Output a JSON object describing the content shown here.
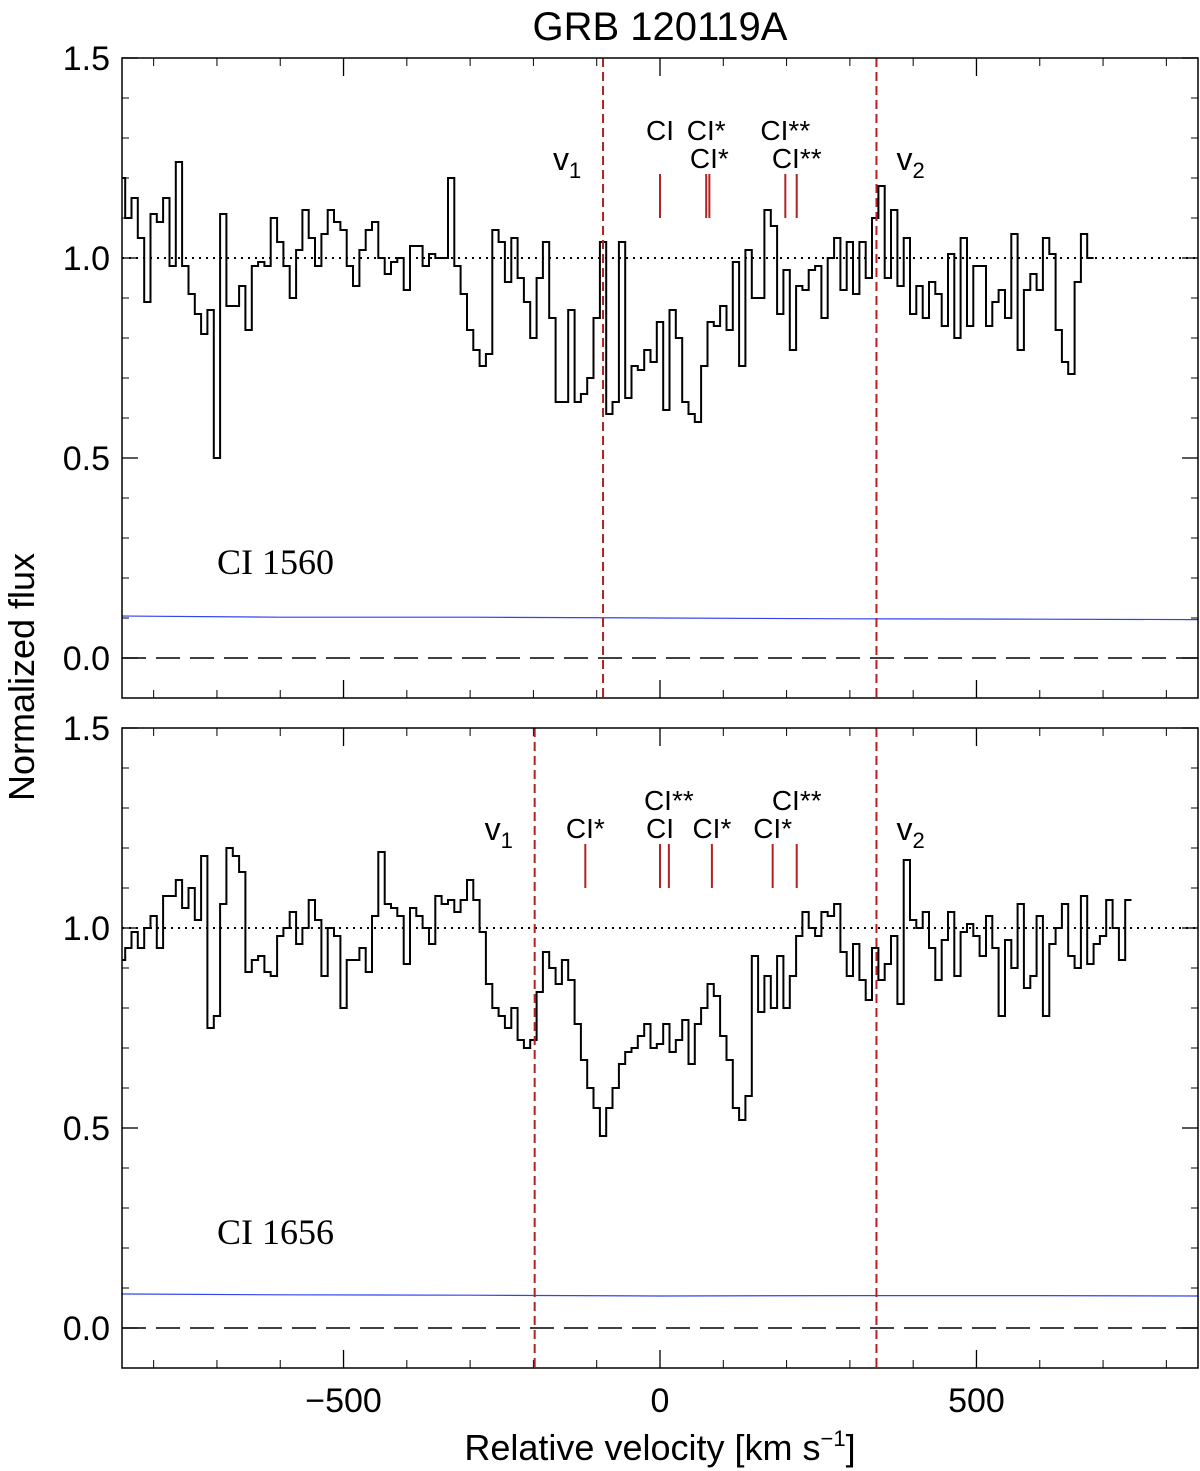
{
  "title": "GRB 120119A",
  "ylabel": "Normalized flux",
  "xlabel": "Relative velocity  [km s",
  "xlabel_sup": "−1",
  "xlabel_end": "]",
  "colors": {
    "spectrum": "#000000",
    "error": "#3344ee",
    "limits": "#b22222",
    "ticks": "#b22222",
    "continuum": "#000000"
  },
  "chart_data": [
    {
      "type": "line",
      "panel_label": "CI 1560",
      "xlim": [
        -850,
        850
      ],
      "ylim": [
        -0.1,
        1.5
      ],
      "yticks": [
        0.0,
        0.5,
        1.0,
        1.5
      ],
      "ytick_labels": [
        "0.0",
        "0.5",
        "1.0",
        "1.5"
      ],
      "xticks": [
        -500,
        0,
        500
      ],
      "xtick_labels": [],
      "grid": false,
      "continuum": 1.0,
      "zero_level": 0.0,
      "v1": -90,
      "v2": 342,
      "v1_label": "v",
      "v1_sub": "1",
      "v2_label": "v",
      "v2_sub": "2",
      "transitions": [
        {
          "velocity": 0,
          "label": "CI",
          "row": 0
        },
        {
          "velocity": 73,
          "label": "CI*",
          "row": 0
        },
        {
          "velocity": 78,
          "label": "CI*",
          "row": 1
        },
        {
          "velocity": 198,
          "label": "CI**",
          "row": 0
        },
        {
          "velocity": 216,
          "label": "CI**",
          "row": 1
        }
      ],
      "spectrum": {
        "x_start": -850,
        "x_step": 10,
        "y": [
          1.2,
          1.1,
          1.15,
          1.05,
          0.89,
          1.11,
          1.09,
          1.15,
          0.98,
          1.24,
          0.98,
          0.91,
          0.86,
          0.81,
          0.87,
          0.5,
          1.11,
          0.88,
          0.88,
          0.93,
          0.82,
          0.98,
          0.99,
          0.98,
          1.1,
          1.04,
          0.98,
          0.9,
          1.02,
          1.12,
          1.05,
          0.98,
          1.06,
          1.12,
          1.09,
          1.07,
          0.98,
          0.93,
          1.02,
          1.07,
          1.09,
          1.0,
          0.96,
          0.99,
          1.0,
          0.92,
          1.03,
          1.03,
          0.98,
          1.01,
          1.0,
          1.0,
          1.2,
          0.98,
          0.91,
          0.82,
          0.77,
          0.73,
          0.76,
          1.07,
          1.04,
          0.94,
          1.05,
          0.95,
          0.89,
          0.8,
          0.95,
          1.04,
          0.85,
          0.64,
          0.64,
          0.87,
          0.64,
          0.66,
          0.7,
          0.85,
          1.04,
          0.61,
          0.64,
          1.04,
          0.65,
          0.73,
          0.72,
          0.77,
          0.74,
          0.84,
          0.62,
          0.87,
          0.8,
          0.64,
          0.61,
          0.59,
          0.73,
          0.84,
          0.83,
          0.88,
          0.82,
          0.99,
          0.73,
          1.02,
          0.9,
          0.9,
          1.12,
          1.08,
          0.86,
          0.97,
          0.77,
          0.93,
          0.92,
          0.97,
          0.98,
          0.85,
          1.0,
          1.05,
          0.92,
          1.04,
          0.91,
          1.04,
          0.95,
          1.1,
          1.18,
          0.95,
          1.12,
          0.93,
          1.05,
          0.86,
          0.93,
          0.85,
          0.94,
          0.91,
          0.83,
          1.01,
          0.8,
          1.05,
          0.83,
          0.98,
          0.98,
          0.83,
          0.89,
          0.92,
          0.85,
          1.06,
          0.77,
          0.92,
          0.96,
          0.92,
          1.05,
          1.01,
          0.82,
          0.74,
          0.71,
          0.94,
          1.06,
          1.0
        ]
      },
      "error": {
        "x": [
          -850,
          -600,
          -300,
          0,
          300,
          600,
          850
        ],
        "y": [
          0.105,
          0.102,
          0.102,
          0.1,
          0.098,
          0.097,
          0.096
        ]
      }
    },
    {
      "type": "line",
      "panel_label": "CI 1656",
      "xlim": [
        -850,
        850
      ],
      "ylim": [
        -0.1,
        1.5
      ],
      "yticks": [
        0.0,
        0.5,
        1.0,
        1.5
      ],
      "ytick_labels": [
        "0.0",
        "0.5",
        "1.0",
        "1.5"
      ],
      "xticks": [
        -500,
        0,
        500
      ],
      "xtick_labels": [
        "−500",
        "0",
        "500"
      ],
      "grid": false,
      "continuum": 1.0,
      "zero_level": 0.0,
      "v1": -198,
      "v2": 342,
      "v1_label": "v",
      "v1_sub": "1",
      "v2_label": "v",
      "v2_sub": "2",
      "transitions": [
        {
          "velocity": -118,
          "label": "CI*",
          "row": 1
        },
        {
          "velocity": 0,
          "label": "CI",
          "row": 1
        },
        {
          "velocity": 14,
          "label": "CI**",
          "row": 0
        },
        {
          "velocity": 82,
          "label": "CI*",
          "row": 1
        },
        {
          "velocity": 178,
          "label": "CI*",
          "row": 1
        },
        {
          "velocity": 216,
          "label": "CI**",
          "row": 0
        }
      ],
      "spectrum": {
        "x_start": -850,
        "x_step": 10,
        "y": [
          0.92,
          0.95,
          0.99,
          0.95,
          1.0,
          1.03,
          0.95,
          1.08,
          1.08,
          1.12,
          1.05,
          1.1,
          1.02,
          1.18,
          0.75,
          0.78,
          1.06,
          1.2,
          1.18,
          1.14,
          0.89,
          0.92,
          0.93,
          0.89,
          0.88,
          0.98,
          1.0,
          1.04,
          0.96,
          1.0,
          1.07,
          1.02,
          0.88,
          1.0,
          0.98,
          0.8,
          0.92,
          0.92,
          0.95,
          0.89,
          1.03,
          1.19,
          1.06,
          1.05,
          1.03,
          0.91,
          1.05,
          1.03,
          1.0,
          0.96,
          1.08,
          1.06,
          1.07,
          1.04,
          1.07,
          1.12,
          1.07,
          0.99,
          0.86,
          0.8,
          0.78,
          0.75,
          0.8,
          0.72,
          0.7,
          0.72,
          0.84,
          0.94,
          0.9,
          0.86,
          0.92,
          0.87,
          0.76,
          0.67,
          0.6,
          0.55,
          0.48,
          0.55,
          0.6,
          0.66,
          0.69,
          0.7,
          0.73,
          0.76,
          0.7,
          0.71,
          0.76,
          0.69,
          0.72,
          0.77,
          0.66,
          0.76,
          0.8,
          0.86,
          0.83,
          0.73,
          0.67,
          0.55,
          0.52,
          0.58,
          0.93,
          0.79,
          0.88,
          0.8,
          0.93,
          0.8,
          0.88,
          0.98,
          1.04,
          1.0,
          0.98,
          1.04,
          1.03,
          1.06,
          0.94,
          0.88,
          0.96,
          0.87,
          0.82,
          0.95,
          0.87,
          0.91,
          0.98,
          0.81,
          1.17,
          1.02,
          1.0,
          1.04,
          0.95,
          0.87,
          0.97,
          1.04,
          0.88,
          0.99,
          1.01,
          0.98,
          0.93,
          1.03,
          0.95,
          0.78,
          0.97,
          0.9,
          1.06,
          0.85,
          0.88,
          1.03,
          0.78,
          0.96,
          1.0,
          1.06,
          0.93,
          0.9,
          1.08,
          0.91,
          0.96,
          0.98,
          1.07,
          1.0,
          0.92,
          1.07
        ]
      },
      "error": {
        "x": [
          -850,
          -600,
          -300,
          0,
          300,
          600,
          850
        ],
        "y": [
          0.085,
          0.083,
          0.082,
          0.08,
          0.081,
          0.081,
          0.08
        ]
      }
    }
  ]
}
